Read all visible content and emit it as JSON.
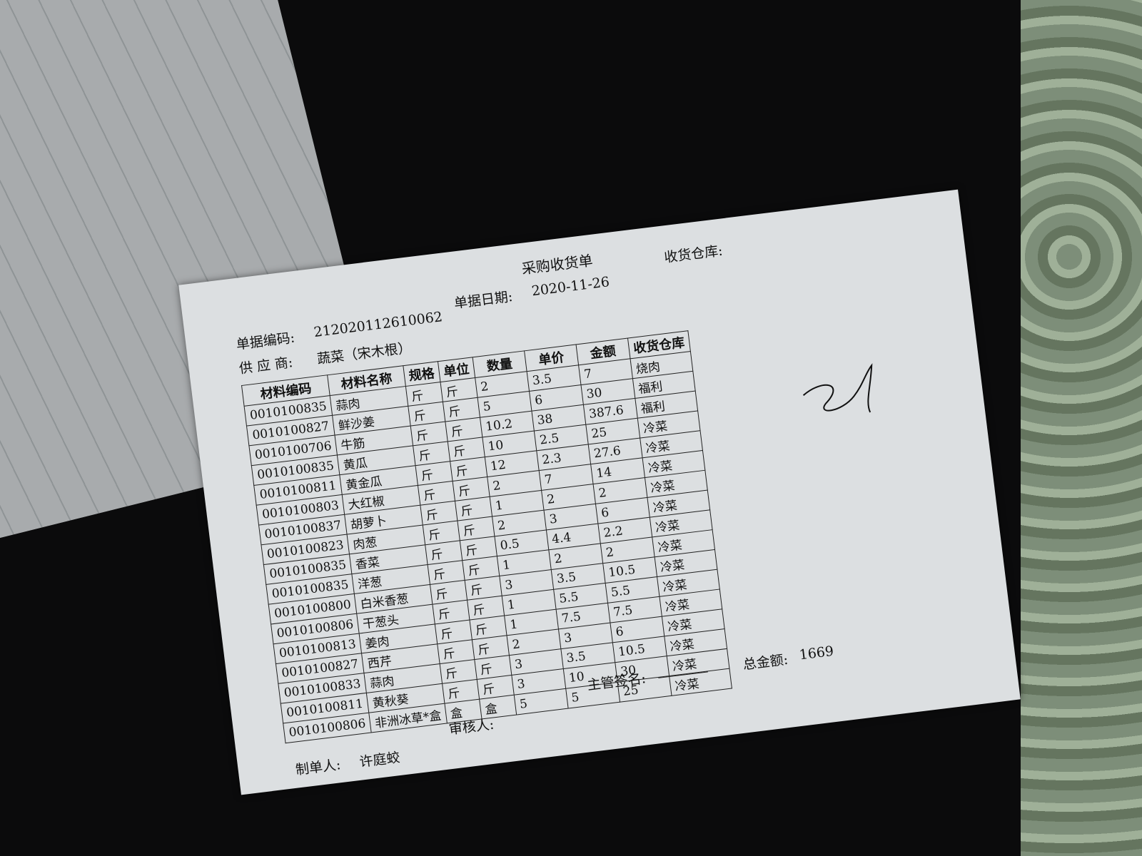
{
  "header": {
    "title": "采购收货单",
    "doc_no_label": "单据编码:",
    "doc_no": "212020112610062",
    "date_label": "单据日期:",
    "date": "2020-11-26",
    "warehouse_label": "收货仓库:",
    "supplier_label": "供 应 商:",
    "supplier": "蔬菜（宋木根）"
  },
  "table": {
    "columns": [
      "材料编码",
      "材料名称",
      "规格",
      "单位",
      "数量",
      "单价",
      "金额",
      "收货仓库"
    ],
    "rows": [
      [
        "0010100835",
        "蒜肉",
        "斤",
        "斤",
        "2",
        "3.5",
        "7",
        "烧肉"
      ],
      [
        "0010100827",
        "鲜沙姜",
        "斤",
        "斤",
        "5",
        "6",
        "30",
        "福利"
      ],
      [
        "0010100706",
        "牛筋",
        "斤",
        "斤",
        "10.2",
        "38",
        "387.6",
        "福利"
      ],
      [
        "0010100835",
        "黄瓜",
        "斤",
        "斤",
        "10",
        "2.5",
        "25",
        "冷菜"
      ],
      [
        "0010100811",
        "黄金瓜",
        "斤",
        "斤",
        "12",
        "2.3",
        "27.6",
        "冷菜"
      ],
      [
        "0010100803",
        "大红椒",
        "斤",
        "斤",
        "2",
        "7",
        "14",
        "冷菜"
      ],
      [
        "0010100837",
        "胡萝卜",
        "斤",
        "斤",
        "1",
        "2",
        "2",
        "冷菜"
      ],
      [
        "0010100823",
        "肉葱",
        "斤",
        "斤",
        "2",
        "3",
        "6",
        "冷菜"
      ],
      [
        "0010100835",
        "香菜",
        "斤",
        "斤",
        "0.5",
        "4.4",
        "2.2",
        "冷菜"
      ],
      [
        "0010100835",
        "洋葱",
        "斤",
        "斤",
        "1",
        "2",
        "2",
        "冷菜"
      ],
      [
        "0010100800",
        "白米香葱",
        "斤",
        "斤",
        "3",
        "3.5",
        "10.5",
        "冷菜"
      ],
      [
        "0010100806",
        "干葱头",
        "斤",
        "斤",
        "1",
        "5.5",
        "5.5",
        "冷菜"
      ],
      [
        "0010100813",
        "姜肉",
        "斤",
        "斤",
        "1",
        "7.5",
        "7.5",
        "冷菜"
      ],
      [
        "0010100827",
        "西芹",
        "斤",
        "斤",
        "2",
        "3",
        "6",
        "冷菜"
      ],
      [
        "0010100833",
        "蒜肉",
        "斤",
        "斤",
        "3",
        "3.5",
        "10.5",
        "冷菜"
      ],
      [
        "0010100811",
        "黄秋葵",
        "斤",
        "斤",
        "3",
        "10",
        "30",
        "冷菜"
      ],
      [
        "0010100806",
        "非洲冰草*盒",
        "盒",
        "盒",
        "5",
        "5",
        "25",
        "冷菜"
      ]
    ]
  },
  "footer": {
    "supervisor_label": "主管签名:",
    "total_label": "总金额:",
    "total": "1669",
    "reviewer_label": "审核人:",
    "maker_label": "制单人:",
    "maker": "许庭蛟"
  }
}
